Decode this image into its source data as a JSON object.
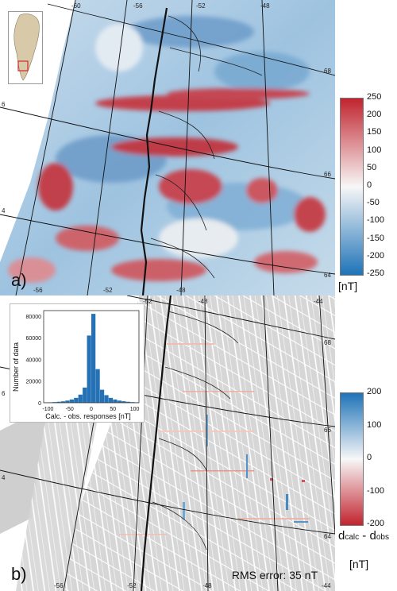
{
  "panel_a": {
    "label": "a)",
    "lon_ticks": [
      "-60",
      "-56",
      "-52",
      "-48"
    ],
    "lon_ticks_bottom": [
      "-56",
      "-52",
      "-48"
    ],
    "lat_ticks_right": [
      "68",
      "66",
      "64"
    ],
    "lat_ticks_left": [
      "6",
      "4"
    ],
    "colorbar": {
      "ticks": [
        "250",
        "200",
        "150",
        "100",
        "50",
        "0",
        "-50",
        "-100",
        "-150",
        "-200",
        "-250"
      ],
      "unit": "[nT]",
      "colors": [
        "#c1242f",
        "#f7f7f7",
        "#1e73b8"
      ]
    }
  },
  "panel_b": {
    "label": "b)",
    "lon_ticks": [
      "-56",
      "-52",
      "-48",
      "-44"
    ],
    "lon_ticks_top": [
      "-52",
      "-48",
      "-44"
    ],
    "lat_ticks_right": [
      "68",
      "66",
      "64"
    ],
    "lat_ticks_left": [
      "6",
      "4"
    ],
    "rms_text": "RMS error: 35 nT",
    "colorbar": {
      "ticks": [
        "200",
        "100",
        "0",
        "-100",
        "-200"
      ],
      "title_main": "d",
      "title_sub1": "calc",
      "title_sep": " - d",
      "title_sub2": "obs",
      "unit": "[nT]",
      "colors": [
        "#1e73b8",
        "#f7f7f7",
        "#c1242f"
      ]
    },
    "histogram": {
      "ylabel": "Number of data",
      "xlabel": "Calc. - obs. responses [nT]",
      "yticks": [
        "80000",
        "60000",
        "40000",
        "20000",
        "0"
      ],
      "xticks": [
        "-100",
        "-50",
        "0",
        "50",
        "100"
      ],
      "ylim": [
        0,
        85000
      ],
      "xlim": [
        -110,
        110
      ],
      "bin_width": 10,
      "bins_x": [
        -105,
        -95,
        -85,
        -75,
        -65,
        -55,
        -45,
        -35,
        -25,
        -15,
        -5,
        5,
        15,
        25,
        35,
        45,
        55,
        65,
        75,
        85,
        95,
        105
      ],
      "counts": [
        300,
        400,
        600,
        900,
        1300,
        2000,
        3000,
        4500,
        7500,
        14000,
        62000,
        82000,
        31000,
        12000,
        7000,
        4500,
        3000,
        2000,
        1400,
        900,
        600,
        400
      ],
      "color": "#2471b5"
    }
  }
}
